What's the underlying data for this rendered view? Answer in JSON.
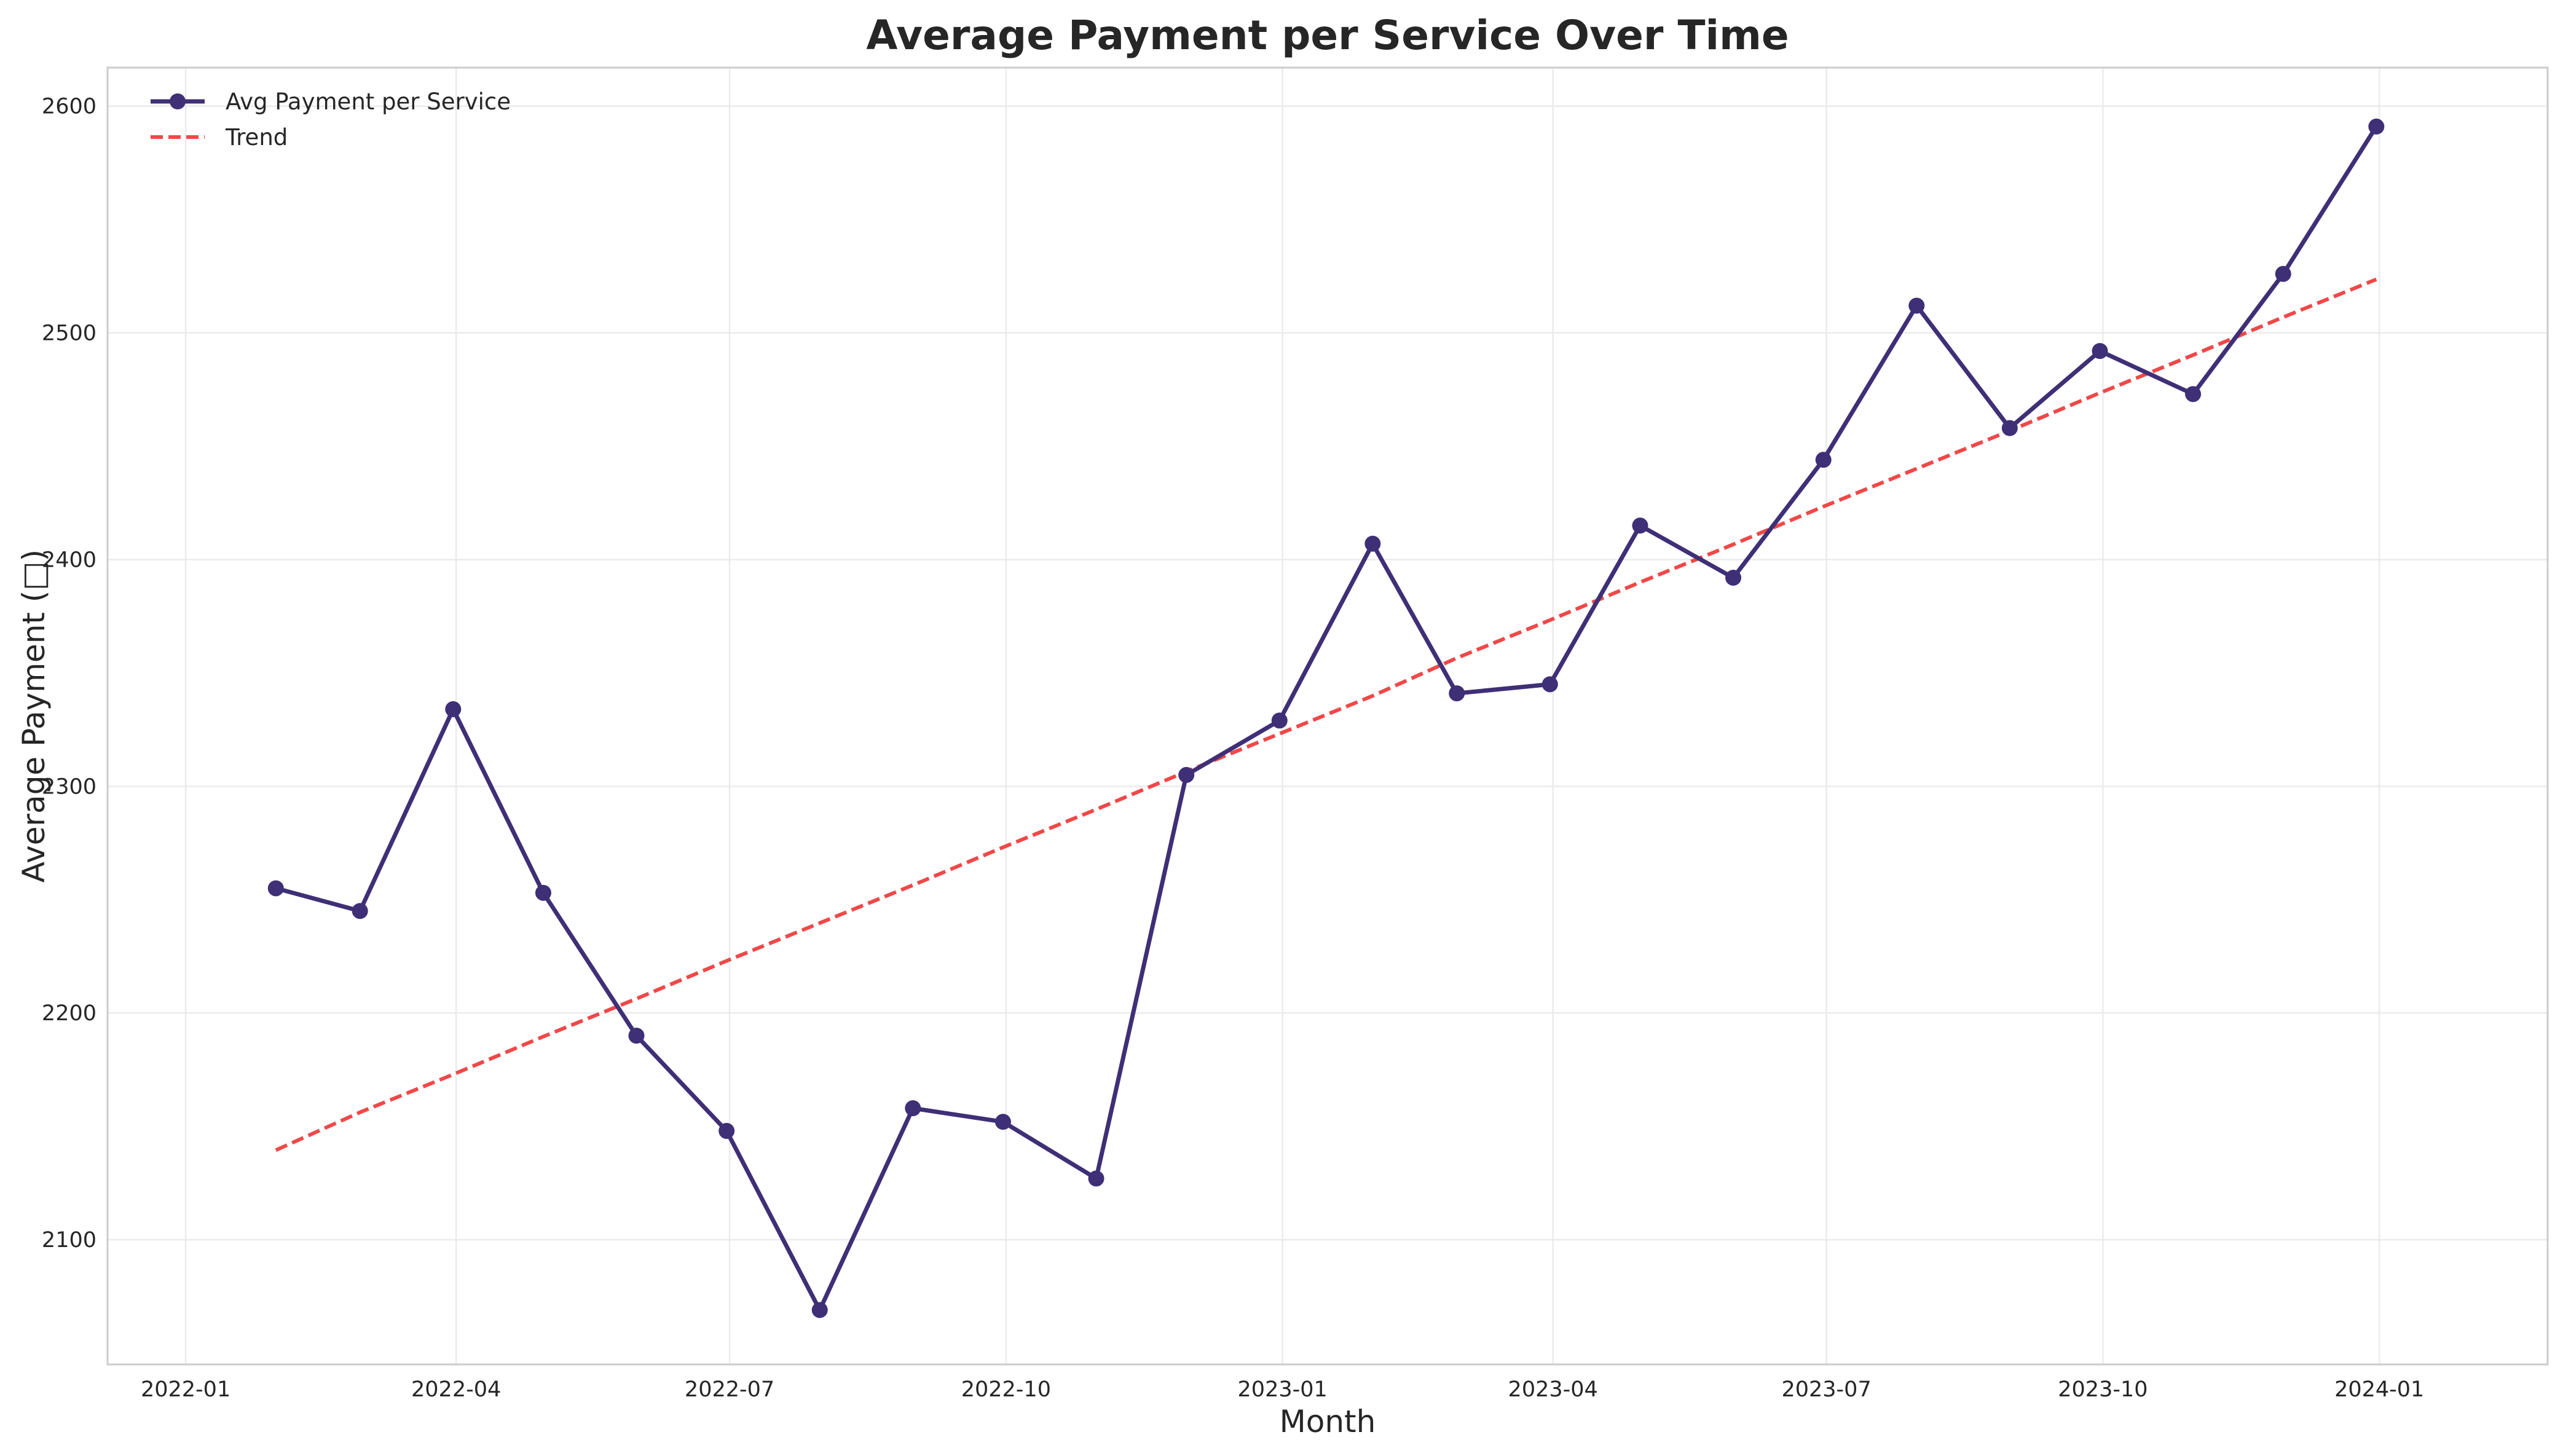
{
  "chart_data": {
    "type": "line",
    "title": "Average Payment per Service Over Time",
    "xlabel": "Month",
    "ylabel": "Average Payment (□)",
    "grid": true,
    "legend_position": "top-left",
    "x_ticks": [
      "2022-01",
      "2022-04",
      "2022-07",
      "2022-10",
      "2023-01",
      "2023-04",
      "2023-07",
      "2023-10",
      "2024-01"
    ],
    "y_ticks": [
      2100,
      2200,
      2300,
      2400,
      2500,
      2600
    ],
    "xlim": [
      "2021-12-06",
      "2024-02-26"
    ],
    "ylim": [
      2045,
      2617
    ],
    "x": [
      "2022-01-31",
      "2022-02-28",
      "2022-03-31",
      "2022-04-30",
      "2022-05-31",
      "2022-06-30",
      "2022-07-31",
      "2022-08-31",
      "2022-09-30",
      "2022-10-31",
      "2022-11-30",
      "2022-12-31",
      "2023-01-31",
      "2023-02-28",
      "2023-03-31",
      "2023-04-30",
      "2023-05-31",
      "2023-06-30",
      "2023-07-31",
      "2023-08-31",
      "2023-09-30",
      "2023-10-31",
      "2023-11-30",
      "2023-12-31"
    ],
    "series": [
      {
        "name": "Avg Payment per Service",
        "color": "#3f2f76",
        "style": "solid",
        "marker": "circle",
        "values": [
          2255,
          2245,
          2334,
          2253,
          2190,
          2148,
          2069,
          2158,
          2152,
          2127,
          2305,
          2329,
          2407,
          2341,
          2345,
          2415,
          2392,
          2444,
          2512,
          2458,
          2492,
          2473,
          2526,
          2591
        ]
      },
      {
        "name": "Trend",
        "color": "#f04848",
        "style": "dashed",
        "marker": "none",
        "values": [
          2139.5,
          2156.2,
          2172.9,
          2189.6,
          2206.3,
          2223.0,
          2239.7,
          2256.4,
          2273.1,
          2289.8,
          2306.5,
          2323.2,
          2339.9,
          2356.6,
          2373.3,
          2390.0,
          2406.7,
          2423.4,
          2440.1,
          2456.8,
          2473.5,
          2490.2,
          2506.9,
          2523.6
        ]
      }
    ]
  }
}
